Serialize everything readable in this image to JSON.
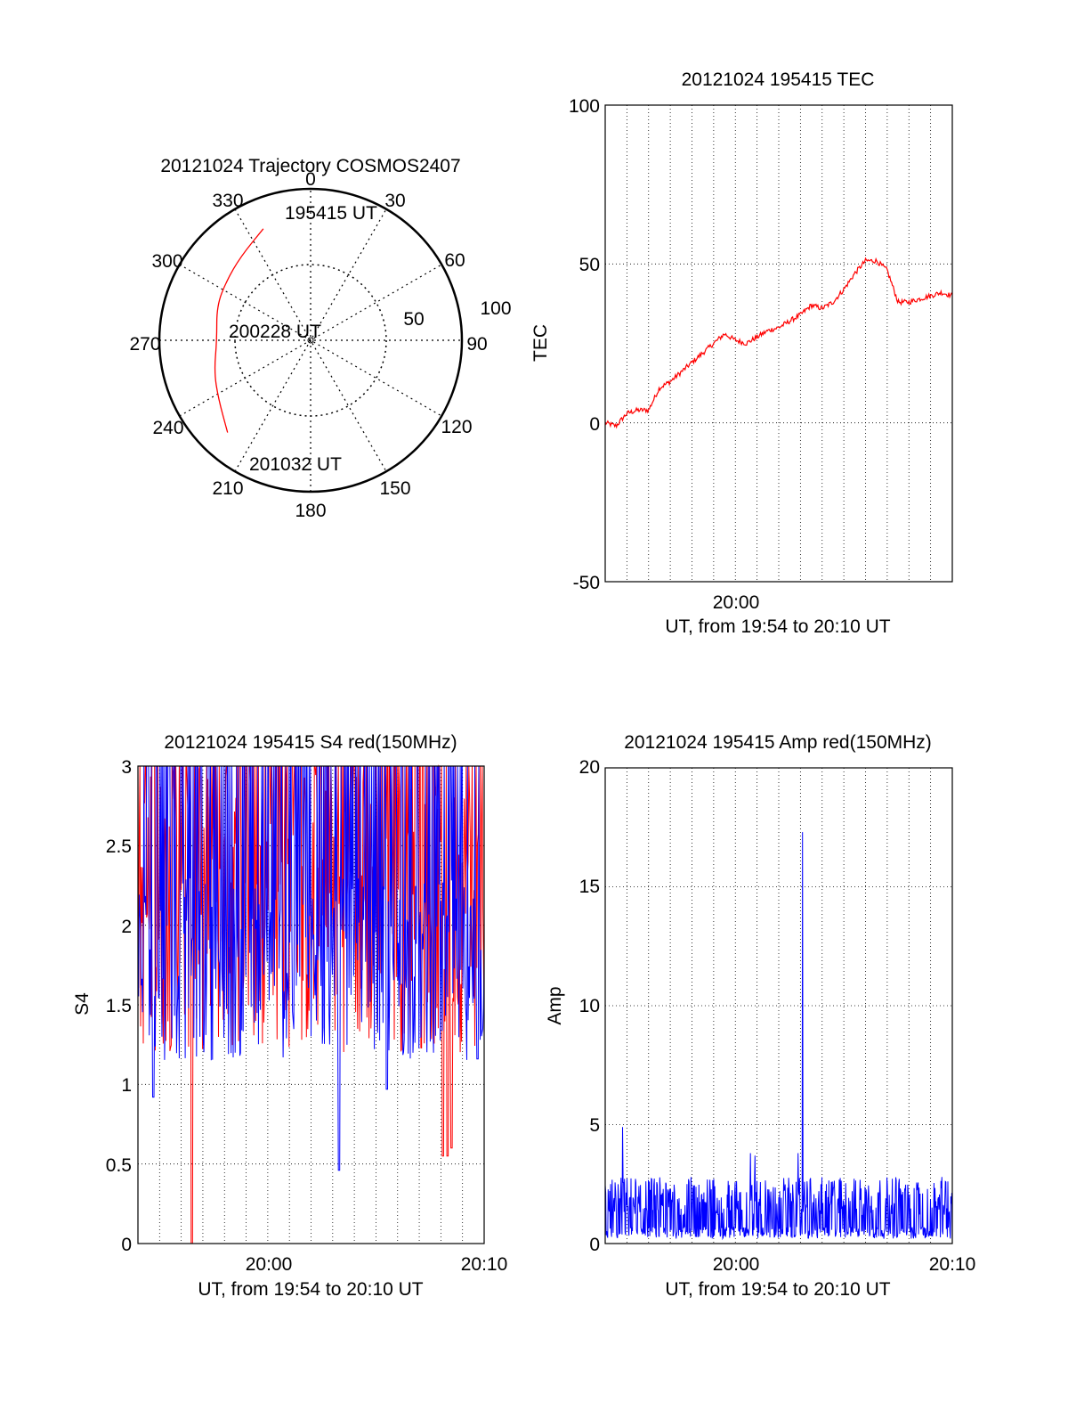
{
  "polar": {
    "title": "20121024 Trajectory COSMOS2407",
    "azimuth_labels": [
      "0",
      "30",
      "60",
      "90",
      "120",
      "150",
      "180",
      "210",
      "240",
      "270",
      "300",
      "330"
    ],
    "ring_labels": [
      "50",
      "100"
    ],
    "track_color": "#ff0000",
    "track": [
      {
        "az": 337,
        "r": 80,
        "label": "195415 UT"
      },
      {
        "az": 320,
        "r": 72
      },
      {
        "az": 305,
        "r": 68
      },
      {
        "az": 290,
        "r": 66
      },
      {
        "az": 270,
        "r": 62,
        "label": "200228 UT"
      },
      {
        "az": 252,
        "r": 67
      },
      {
        "az": 238,
        "r": 72
      },
      {
        "az": 222,
        "r": 82,
        "label": "201032 UT"
      }
    ]
  },
  "tec": {
    "title": "20121024 195415 TEC",
    "ylabel": "TEC",
    "xlabel": "UT, from 19:54 to 20:10 UT",
    "ylim": [
      -50,
      100
    ],
    "yticks": [
      "100",
      "50",
      "0",
      "-50"
    ],
    "xtick_labels": [
      "20:00"
    ],
    "line_color": "#ff0000",
    "x": [
      0,
      0.5,
      1.0,
      1.5,
      2.0,
      2.5,
      3.0,
      3.5,
      4.0,
      4.5,
      5.0,
      5.5,
      6.0,
      6.5,
      7.0,
      7.5,
      8.0,
      8.5,
      9.0,
      9.5,
      10.0,
      10.5,
      11.0,
      11.5,
      12.0,
      12.5,
      13.0,
      13.5,
      14.0,
      14.5,
      15.0,
      15.5,
      16.0
    ],
    "y": [
      0,
      -1,
      3,
      4,
      4,
      11,
      13,
      16,
      19,
      22,
      25,
      28,
      26,
      25,
      27,
      29,
      30,
      32,
      34,
      37,
      36,
      38,
      42,
      47,
      51,
      51,
      48,
      38,
      38,
      39,
      40,
      41,
      40
    ]
  },
  "s4": {
    "title": "20121024 195415 S4 red(150MHz)",
    "ylabel": "S4",
    "xlabel": "UT, from 19:54 to 20:10 UT",
    "ylim": [
      0,
      3
    ],
    "yticks": [
      "3",
      "2.5",
      "2",
      "1.5",
      "1",
      "0.5",
      "0"
    ],
    "xtick_labels": [
      "20:00",
      "20:10"
    ],
    "series_colors": [
      "#ff0000",
      "#0000ff"
    ],
    "red_dips": [
      {
        "t": 2.5,
        "v": 0.0
      },
      {
        "t": 14.1,
        "v": 0.55
      },
      {
        "t": 14.3,
        "v": 0.55
      },
      {
        "t": 14.5,
        "v": 0.6
      }
    ],
    "blue_dips": [
      {
        "t": 0.7,
        "v": 0.92
      },
      {
        "t": 9.3,
        "v": 0.46
      },
      {
        "t": 11.5,
        "v": 0.97
      },
      {
        "t": 15.7,
        "v": 1.16
      }
    ]
  },
  "amp": {
    "title": "20121024 195415 Amp red(150MHz)",
    "ylabel": "Amp",
    "xlabel": "UT, from 19:54 to 20:10 UT",
    "ylim": [
      0,
      20
    ],
    "yticks": [
      "20",
      "15",
      "10",
      "5",
      "0"
    ],
    "xtick_labels": [
      "20:00",
      "20:10"
    ],
    "line_color": "#0000ff",
    "spikes": [
      {
        "t": 0.8,
        "v": 4.9
      },
      {
        "t": 6.7,
        "v": 3.8
      },
      {
        "t": 6.9,
        "v": 3.7
      },
      {
        "t": 9.1,
        "v": 17.3
      },
      {
        "t": 8.9,
        "v": 3.8
      }
    ]
  }
}
